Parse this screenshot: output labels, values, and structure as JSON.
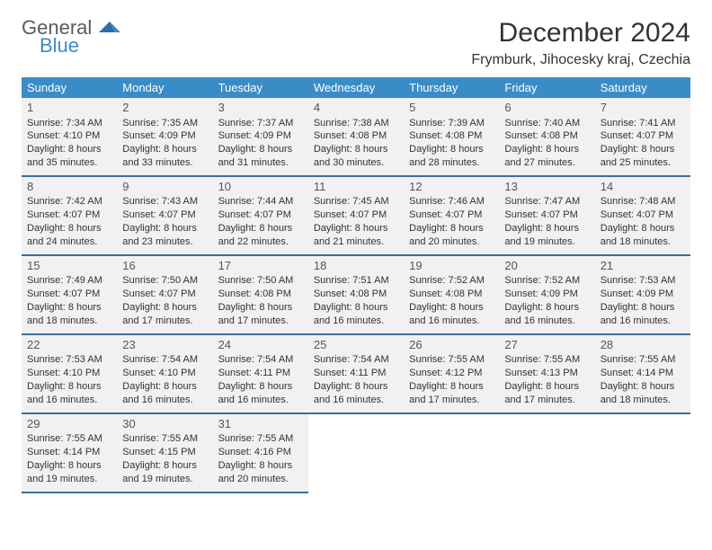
{
  "brand": {
    "general": "General",
    "blue": "Blue"
  },
  "title": "December 2024",
  "location": "Frymburk, Jihocesky kraj, Czechia",
  "colors": {
    "header_bg": "#3a8cc7",
    "header_text": "#ffffff",
    "cell_bg": "#f1f1f1",
    "cell_border": "#3a6f9c",
    "text": "#333333",
    "brand_gray": "#5a5a5a",
    "brand_blue": "#3a8cc7"
  },
  "weekdays": [
    "Sunday",
    "Monday",
    "Tuesday",
    "Wednesday",
    "Thursday",
    "Friday",
    "Saturday"
  ],
  "days": [
    {
      "n": 1,
      "sr": "7:34 AM",
      "ss": "4:10 PM",
      "dl": "8 hours and 35 minutes."
    },
    {
      "n": 2,
      "sr": "7:35 AM",
      "ss": "4:09 PM",
      "dl": "8 hours and 33 minutes."
    },
    {
      "n": 3,
      "sr": "7:37 AM",
      "ss": "4:09 PM",
      "dl": "8 hours and 31 minutes."
    },
    {
      "n": 4,
      "sr": "7:38 AM",
      "ss": "4:08 PM",
      "dl": "8 hours and 30 minutes."
    },
    {
      "n": 5,
      "sr": "7:39 AM",
      "ss": "4:08 PM",
      "dl": "8 hours and 28 minutes."
    },
    {
      "n": 6,
      "sr": "7:40 AM",
      "ss": "4:08 PM",
      "dl": "8 hours and 27 minutes."
    },
    {
      "n": 7,
      "sr": "7:41 AM",
      "ss": "4:07 PM",
      "dl": "8 hours and 25 minutes."
    },
    {
      "n": 8,
      "sr": "7:42 AM",
      "ss": "4:07 PM",
      "dl": "8 hours and 24 minutes."
    },
    {
      "n": 9,
      "sr": "7:43 AM",
      "ss": "4:07 PM",
      "dl": "8 hours and 23 minutes."
    },
    {
      "n": 10,
      "sr": "7:44 AM",
      "ss": "4:07 PM",
      "dl": "8 hours and 22 minutes."
    },
    {
      "n": 11,
      "sr": "7:45 AM",
      "ss": "4:07 PM",
      "dl": "8 hours and 21 minutes."
    },
    {
      "n": 12,
      "sr": "7:46 AM",
      "ss": "4:07 PM",
      "dl": "8 hours and 20 minutes."
    },
    {
      "n": 13,
      "sr": "7:47 AM",
      "ss": "4:07 PM",
      "dl": "8 hours and 19 minutes."
    },
    {
      "n": 14,
      "sr": "7:48 AM",
      "ss": "4:07 PM",
      "dl": "8 hours and 18 minutes."
    },
    {
      "n": 15,
      "sr": "7:49 AM",
      "ss": "4:07 PM",
      "dl": "8 hours and 18 minutes."
    },
    {
      "n": 16,
      "sr": "7:50 AM",
      "ss": "4:07 PM",
      "dl": "8 hours and 17 minutes."
    },
    {
      "n": 17,
      "sr": "7:50 AM",
      "ss": "4:08 PM",
      "dl": "8 hours and 17 minutes."
    },
    {
      "n": 18,
      "sr": "7:51 AM",
      "ss": "4:08 PM",
      "dl": "8 hours and 16 minutes."
    },
    {
      "n": 19,
      "sr": "7:52 AM",
      "ss": "4:08 PM",
      "dl": "8 hours and 16 minutes."
    },
    {
      "n": 20,
      "sr": "7:52 AM",
      "ss": "4:09 PM",
      "dl": "8 hours and 16 minutes."
    },
    {
      "n": 21,
      "sr": "7:53 AM",
      "ss": "4:09 PM",
      "dl": "8 hours and 16 minutes."
    },
    {
      "n": 22,
      "sr": "7:53 AM",
      "ss": "4:10 PM",
      "dl": "8 hours and 16 minutes."
    },
    {
      "n": 23,
      "sr": "7:54 AM",
      "ss": "4:10 PM",
      "dl": "8 hours and 16 minutes."
    },
    {
      "n": 24,
      "sr": "7:54 AM",
      "ss": "4:11 PM",
      "dl": "8 hours and 16 minutes."
    },
    {
      "n": 25,
      "sr": "7:54 AM",
      "ss": "4:11 PM",
      "dl": "8 hours and 16 minutes."
    },
    {
      "n": 26,
      "sr": "7:55 AM",
      "ss": "4:12 PM",
      "dl": "8 hours and 17 minutes."
    },
    {
      "n": 27,
      "sr": "7:55 AM",
      "ss": "4:13 PM",
      "dl": "8 hours and 17 minutes."
    },
    {
      "n": 28,
      "sr": "7:55 AM",
      "ss": "4:14 PM",
      "dl": "8 hours and 18 minutes."
    },
    {
      "n": 29,
      "sr": "7:55 AM",
      "ss": "4:14 PM",
      "dl": "8 hours and 19 minutes."
    },
    {
      "n": 30,
      "sr": "7:55 AM",
      "ss": "4:15 PM",
      "dl": "8 hours and 19 minutes."
    },
    {
      "n": 31,
      "sr": "7:55 AM",
      "ss": "4:16 PM",
      "dl": "8 hours and 20 minutes."
    }
  ],
  "labels": {
    "sunrise": "Sunrise:",
    "sunset": "Sunset:",
    "daylight": "Daylight:"
  },
  "layout": {
    "start_weekday": 0,
    "rows": 5,
    "cols": 7
  }
}
